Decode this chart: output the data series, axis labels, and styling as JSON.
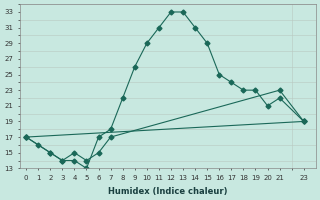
{
  "xlabel": "Humidex (Indice chaleur)",
  "ylabel": "",
  "bg_color": "#c8e8e0",
  "grid_color": "#b0b8c8",
  "line_color": "#1a6858",
  "xlim": [
    -0.5,
    24
  ],
  "ylim": [
    13,
    34
  ],
  "xticks": [
    0,
    1,
    2,
    3,
    4,
    5,
    6,
    7,
    8,
    9,
    10,
    11,
    12,
    13,
    14,
    15,
    16,
    17,
    18,
    19,
    20,
    21,
    23
  ],
  "yticks": [
    13,
    15,
    17,
    19,
    21,
    23,
    25,
    27,
    29,
    31,
    33
  ],
  "line1_x": [
    0,
    1,
    2,
    3,
    4,
    5,
    6,
    7,
    8,
    9,
    10,
    11,
    12,
    13,
    14,
    15,
    16,
    17,
    18,
    19,
    20,
    21,
    23
  ],
  "line1_y": [
    17,
    16,
    15,
    14,
    14,
    13,
    17,
    18,
    22,
    26,
    29,
    31,
    33,
    33,
    31,
    29,
    25,
    24,
    23,
    23,
    21,
    22,
    19
  ],
  "line2_x": [
    0,
    2,
    3,
    4,
    5,
    6,
    7,
    21,
    23
  ],
  "line2_y": [
    17,
    15,
    14,
    15,
    14,
    15,
    17,
    23,
    19
  ],
  "line3_x": [
    0,
    23
  ],
  "line3_y": [
    17,
    19
  ]
}
